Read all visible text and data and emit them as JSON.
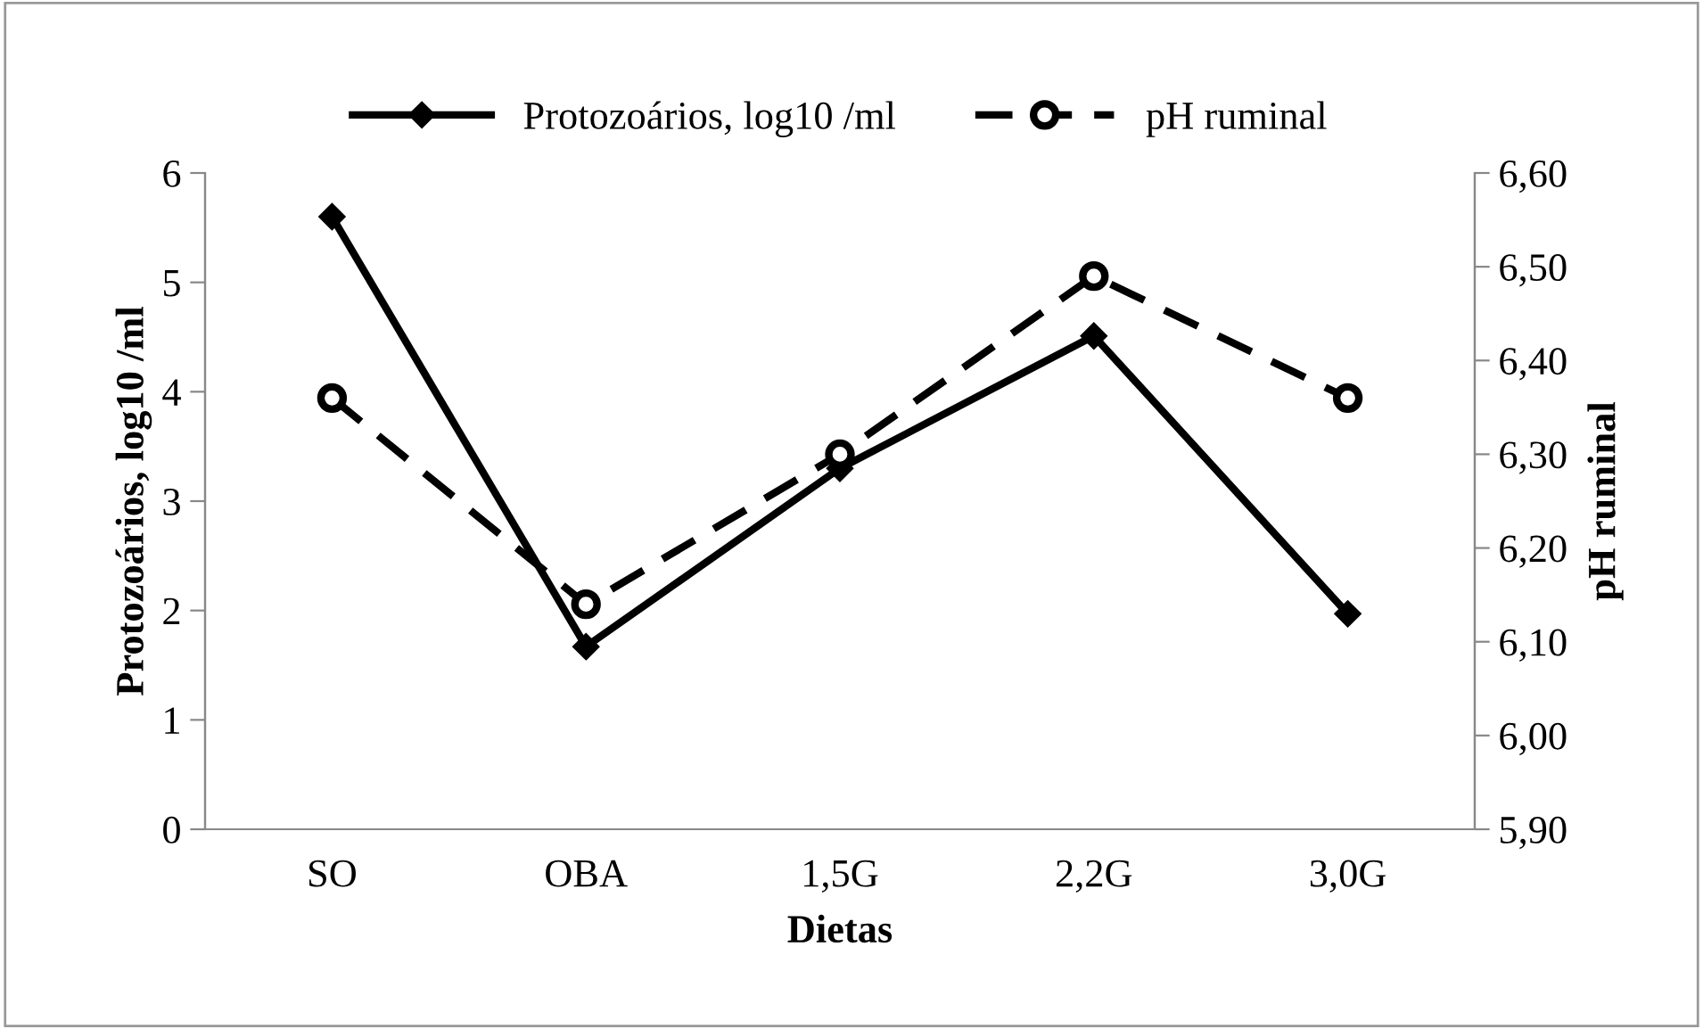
{
  "chart_data": {
    "type": "line",
    "xlabel": "Dietas",
    "ylabel": "Protozoários, log10 /ml",
    "y2label": "pH ruminal",
    "categories": [
      "SO",
      "OBA",
      "1,5G",
      "2,2G",
      "3,0G"
    ],
    "series": [
      {
        "name": "Protozoários, log10 /ml",
        "color": "#000000",
        "values": [
          5.6,
          1.67,
          3.3,
          4.51,
          1.97
        ],
        "marker": "diamond",
        "line_style": "solid"
      },
      {
        "name": "pH ruminal",
        "color": "#000000",
        "values": [
          6.36,
          6.14,
          6.3,
          6.49,
          6.36
        ],
        "axis": "y2",
        "marker": "circle",
        "line_style": "dashed"
      }
    ],
    "ylim": [
      0,
      6
    ],
    "yticks": [
      0,
      1,
      2,
      3,
      4,
      5,
      6
    ],
    "y2lim": [
      5.9,
      6.6
    ],
    "y2ticks": [
      {
        "value": 5.9,
        "label": "5,90"
      },
      {
        "value": 6.0,
        "label": "6,00"
      },
      {
        "value": 6.1,
        "label": "6,10"
      },
      {
        "value": 6.2,
        "label": "6,20"
      },
      {
        "value": 6.3,
        "label": "6,30"
      },
      {
        "value": 6.4,
        "label": "6,40"
      },
      {
        "value": 6.5,
        "label": "6,50"
      },
      {
        "value": 6.6,
        "label": "6,60"
      }
    ],
    "grid": false,
    "legend": "top"
  }
}
